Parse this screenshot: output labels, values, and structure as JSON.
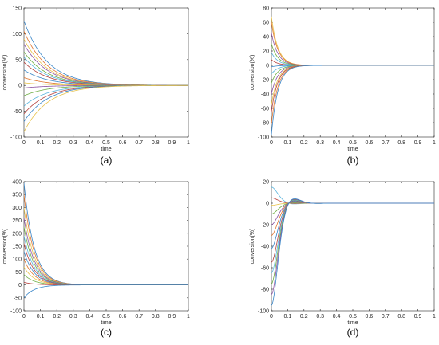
{
  "panels": [
    {
      "label": "(a)",
      "chart_data": {
        "type": "line",
        "title": "",
        "xlabel": "time",
        "ylabel": "conversion(%)",
        "xlim": [
          0,
          1
        ],
        "ylim": [
          -100,
          150
        ],
        "x_ticks": [
          "0",
          "0.1",
          "0.2",
          "0.3",
          "0.4",
          "0.5",
          "0.6",
          "0.7",
          "0.8",
          "0.9",
          "1"
        ],
        "y_ticks": [
          "-100",
          "-50",
          "0",
          "50",
          "100",
          "150"
        ],
        "model": "exponential-decay",
        "decay_rate": 7,
        "y_final": 0,
        "series": [
          {
            "initial": 125,
            "color": "#3a86c8"
          },
          {
            "initial": 105,
            "color": "#e0762f"
          },
          {
            "initial": 90,
            "color": "#e7c24a"
          },
          {
            "initial": 80,
            "color": "#8c52a1"
          },
          {
            "initial": 65,
            "color": "#6fae45"
          },
          {
            "initial": 55,
            "color": "#5ab4dd"
          },
          {
            "initial": 45,
            "color": "#b5413d"
          },
          {
            "initial": 30,
            "color": "#3a86c8"
          },
          {
            "initial": 15,
            "color": "#e0762f"
          },
          {
            "initial": 5,
            "color": "#e7c24a"
          },
          {
            "initial": -5,
            "color": "#8c52a1"
          },
          {
            "initial": -20,
            "color": "#6fae45"
          },
          {
            "initial": -40,
            "color": "#5ab4dd"
          },
          {
            "initial": -55,
            "color": "#b5413d"
          },
          {
            "initial": -70,
            "color": "#3a86c8"
          },
          {
            "initial": -90,
            "color": "#e7c24a"
          }
        ]
      }
    },
    {
      "label": "(b)",
      "chart_data": {
        "type": "line",
        "title": "",
        "xlabel": "time",
        "ylabel": "conversion(%)",
        "xlim": [
          0,
          1
        ],
        "ylim": [
          -100,
          80
        ],
        "x_ticks": [
          "0",
          "0.1",
          "0.2",
          "0.3",
          "0.4",
          "0.5",
          "0.6",
          "0.7",
          "0.8",
          "0.9",
          "1"
        ],
        "y_ticks": [
          "-100",
          "-80",
          "-60",
          "-40",
          "-20",
          "0",
          "20",
          "40",
          "60",
          "80"
        ],
        "model": "exponential-decay",
        "decay_rate": 25,
        "y_final": 0,
        "series": [
          {
            "initial": 68,
            "color": "#e7c24a"
          },
          {
            "initial": 60,
            "color": "#e0762f"
          },
          {
            "initial": 45,
            "color": "#8c52a1"
          },
          {
            "initial": 30,
            "color": "#6fae45"
          },
          {
            "initial": 18,
            "color": "#5ab4dd"
          },
          {
            "initial": 8,
            "color": "#b5413d"
          },
          {
            "initial": -2,
            "color": "#3a86c8"
          },
          {
            "initial": -12,
            "color": "#5ab4dd"
          },
          {
            "initial": -25,
            "color": "#6fae45"
          },
          {
            "initial": -40,
            "color": "#8c52a1"
          },
          {
            "initial": -55,
            "color": "#e7c24a"
          },
          {
            "initial": -65,
            "color": "#b5413d"
          },
          {
            "initial": -82,
            "color": "#e0762f"
          },
          {
            "initial": -97,
            "color": "#3a86c8"
          }
        ]
      }
    },
    {
      "label": "(c)",
      "chart_data": {
        "type": "line",
        "title": "",
        "xlabel": "time",
        "ylabel": "conversion(%)",
        "xlim": [
          0,
          1
        ],
        "ylim": [
          -100,
          400
        ],
        "x_ticks": [
          "0",
          "0.1",
          "0.2",
          "0.3",
          "0.4",
          "0.5",
          "0.6",
          "0.7",
          "0.8",
          "0.9",
          "1"
        ],
        "y_ticks": [
          "-100",
          "-50",
          "0",
          "50",
          "100",
          "150",
          "200",
          "250",
          "300",
          "350",
          "400"
        ],
        "model": "exponential-decay",
        "decay_rate": 16,
        "y_final": 0,
        "series": [
          {
            "initial": 395,
            "color": "#3a86c8"
          },
          {
            "initial": 350,
            "color": "#e0762f"
          },
          {
            "initial": 300,
            "color": "#e7c24a"
          },
          {
            "initial": 260,
            "color": "#8c52a1"
          },
          {
            "initial": 225,
            "color": "#6fae45"
          },
          {
            "initial": 190,
            "color": "#5ab4dd"
          },
          {
            "initial": 160,
            "color": "#b5413d"
          },
          {
            "initial": 130,
            "color": "#3a86c8"
          },
          {
            "initial": 100,
            "color": "#e0762f"
          },
          {
            "initial": 70,
            "color": "#e7c24a"
          },
          {
            "initial": 40,
            "color": "#6fae45"
          },
          {
            "initial": 10,
            "color": "#b5413d"
          },
          {
            "initial": -50,
            "color": "#3a86c8"
          }
        ]
      }
    },
    {
      "label": "(d)",
      "chart_data": {
        "type": "line",
        "title": "",
        "xlabel": "time",
        "ylabel": "conversion(%)",
        "xlim": [
          0,
          1
        ],
        "ylim": [
          -100,
          20
        ],
        "x_ticks": [
          "0",
          "0.1",
          "0.2",
          "0.3",
          "0.4",
          "0.5",
          "0.6",
          "0.7",
          "0.8",
          "0.9",
          "1"
        ],
        "y_ticks": [
          "-100",
          "-80",
          "-60",
          "-40",
          "-20",
          "0",
          "20"
        ],
        "model": "damped-oscillation",
        "decay_rate": 22,
        "angular_frequency": 22,
        "y_final": 0,
        "series": [
          {
            "initial": 15,
            "color": "#5ab4dd"
          },
          {
            "initial": 5,
            "color": "#b5413d"
          },
          {
            "initial": -2,
            "color": "#e7c24a"
          },
          {
            "initial": -10,
            "color": "#6fae45"
          },
          {
            "initial": -20,
            "color": "#8c52a1"
          },
          {
            "initial": -30,
            "color": "#e0762f"
          },
          {
            "initial": -42,
            "color": "#3a86c8"
          },
          {
            "initial": -55,
            "color": "#b5413d"
          },
          {
            "initial": -65,
            "color": "#5ab4dd"
          },
          {
            "initial": -75,
            "color": "#6fae45"
          },
          {
            "initial": -85,
            "color": "#8c52a1"
          },
          {
            "initial": -95,
            "color": "#3a86c8"
          }
        ]
      }
    }
  ]
}
